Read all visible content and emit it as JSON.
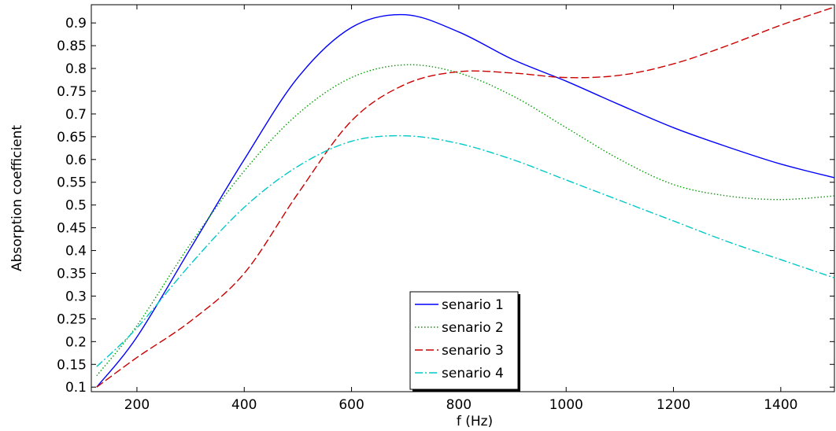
{
  "chart_data": {
    "type": "line",
    "xlabel": "f (Hz)",
    "ylabel": "Absorption coefficient",
    "xlim": [
      115,
      1500
    ],
    "ylim": [
      0.09,
      0.94
    ],
    "xticks": [
      200,
      400,
      600,
      800,
      1000,
      1200,
      1400
    ],
    "yticks": [
      0.1,
      0.15,
      0.2,
      0.25,
      0.3,
      0.35,
      0.4,
      0.45,
      0.5,
      0.55,
      0.6,
      0.65,
      0.7,
      0.75,
      0.8,
      0.85,
      0.9
    ],
    "grid": false,
    "legend_position": "lower-center",
    "series": [
      {
        "name": "senario 1",
        "color": "#0000ff",
        "dash": "solid",
        "x": [
          125,
          200,
          300,
          400,
          500,
          600,
          700,
          800,
          900,
          1000,
          1100,
          1200,
          1300,
          1400,
          1500
        ],
        "y": [
          0.1,
          0.21,
          0.405,
          0.6,
          0.78,
          0.89,
          0.918,
          0.88,
          0.82,
          0.772,
          0.72,
          0.67,
          0.628,
          0.59,
          0.56
        ]
      },
      {
        "name": "senario 2",
        "color": "#00a000",
        "dash": "dotted",
        "x": [
          125,
          200,
          300,
          400,
          500,
          600,
          700,
          800,
          900,
          1000,
          1100,
          1200,
          1300,
          1400,
          1500
        ],
        "y": [
          0.125,
          0.235,
          0.415,
          0.575,
          0.7,
          0.78,
          0.808,
          0.79,
          0.74,
          0.67,
          0.6,
          0.545,
          0.52,
          0.512,
          0.52
        ]
      },
      {
        "name": "senario 3",
        "color": "#cc0000",
        "dash": "dashed",
        "x": [
          125,
          200,
          300,
          400,
          500,
          600,
          700,
          800,
          900,
          1000,
          1100,
          1200,
          1300,
          1400,
          1500
        ],
        "y": [
          0.1,
          0.165,
          0.245,
          0.35,
          0.525,
          0.685,
          0.765,
          0.793,
          0.79,
          0.78,
          0.785,
          0.81,
          0.85,
          0.895,
          0.935
        ]
      },
      {
        "name": "senario 4",
        "color": "#00c8c8",
        "dash": "dashdot",
        "x": [
          125,
          200,
          300,
          400,
          500,
          600,
          700,
          800,
          900,
          1000,
          1100,
          1200,
          1300,
          1400,
          1500
        ],
        "y": [
          0.145,
          0.23,
          0.37,
          0.495,
          0.585,
          0.64,
          0.652,
          0.635,
          0.6,
          0.555,
          0.51,
          0.465,
          0.42,
          0.38,
          0.34
        ]
      }
    ]
  }
}
